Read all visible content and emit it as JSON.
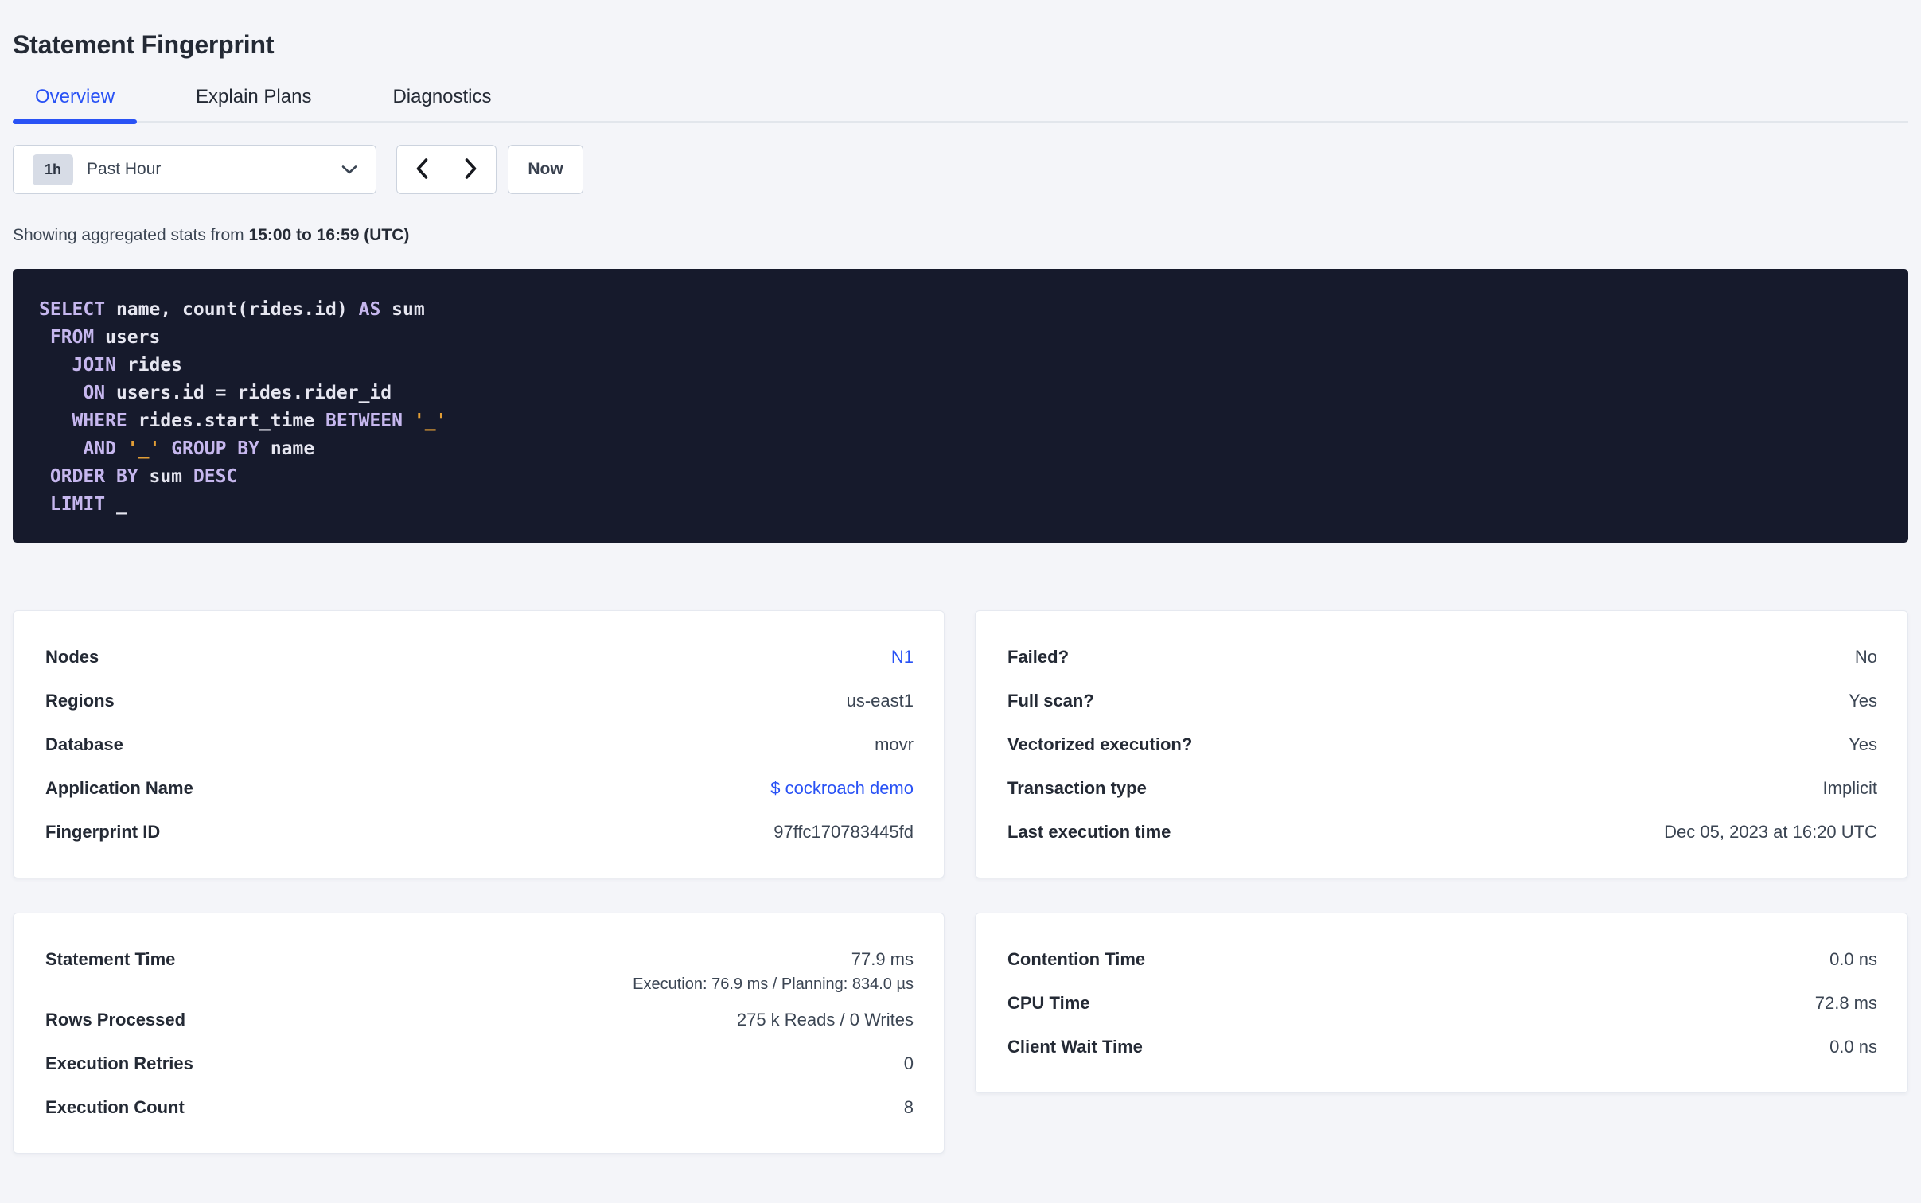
{
  "header": {
    "title": "Statement Fingerprint"
  },
  "tabs": [
    {
      "label": "Overview",
      "active": true
    },
    {
      "label": "Explain Plans",
      "active": false
    },
    {
      "label": "Diagnostics",
      "active": false
    }
  ],
  "toolbar": {
    "range_badge": "1h",
    "range_value": "Past Hour",
    "now_label": "Now",
    "icons": {
      "range_dropdown": "chevron-down",
      "prev": "chevron-left",
      "next": "chevron-right"
    }
  },
  "caption": {
    "prefix": "Showing aggregated stats from",
    "range": "15:00 to 16:59 (UTC)"
  },
  "sql": {
    "lines": [
      [
        {
          "t": "SELECT",
          "c": "kw"
        },
        {
          "t": " name, count(rides.id) ",
          "c": "id"
        },
        {
          "t": "AS",
          "c": "kw"
        },
        {
          "t": " sum",
          "c": "id"
        }
      ],
      [
        {
          "t": " ",
          "c": "id"
        },
        {
          "t": "FROM",
          "c": "kw"
        },
        {
          "t": " users",
          "c": "id"
        }
      ],
      [
        {
          "t": "   ",
          "c": "id"
        },
        {
          "t": "JOIN",
          "c": "kw"
        },
        {
          "t": " rides",
          "c": "id"
        }
      ],
      [
        {
          "t": "    ",
          "c": "id"
        },
        {
          "t": "ON",
          "c": "kw"
        },
        {
          "t": " users.id = rides.rider_id",
          "c": "id"
        }
      ],
      [
        {
          "t": "   ",
          "c": "id"
        },
        {
          "t": "WHERE",
          "c": "kw"
        },
        {
          "t": " rides.start_time ",
          "c": "id"
        },
        {
          "t": "BETWEEN",
          "c": "kw"
        },
        {
          "t": " ",
          "c": "id"
        },
        {
          "t": "'_'",
          "c": "str"
        }
      ],
      [
        {
          "t": "    ",
          "c": "id"
        },
        {
          "t": "AND",
          "c": "kw"
        },
        {
          "t": " ",
          "c": "id"
        },
        {
          "t": "'_'",
          "c": "str"
        },
        {
          "t": " ",
          "c": "id"
        },
        {
          "t": "GROUP BY",
          "c": "kw"
        },
        {
          "t": " name",
          "c": "id"
        }
      ],
      [
        {
          "t": " ",
          "c": "id"
        },
        {
          "t": "ORDER BY",
          "c": "kw"
        },
        {
          "t": " sum ",
          "c": "id"
        },
        {
          "t": "DESC",
          "c": "kw"
        }
      ],
      [
        {
          "t": " ",
          "c": "id"
        },
        {
          "t": "LIMIT",
          "c": "kw"
        },
        {
          "t": " _",
          "c": "id"
        }
      ]
    ]
  },
  "cards": {
    "details": {
      "rows": [
        {
          "label": "Nodes",
          "value": "N1"
        },
        {
          "label": "Regions",
          "value": "us-east1"
        },
        {
          "label": "Database",
          "value": "movr"
        },
        {
          "label": "Application Name",
          "value": "$ cockroach demo"
        },
        {
          "label": "Fingerprint ID",
          "value": "97ffc170783445fd"
        }
      ]
    },
    "attributes": {
      "rows": [
        {
          "label": "Failed?",
          "value": "No"
        },
        {
          "label": "Full scan?",
          "value": "Yes"
        },
        {
          "label": "Vectorized execution?",
          "value": "Yes"
        },
        {
          "label": "Transaction type",
          "value": "Implicit"
        },
        {
          "label": "Last execution time",
          "value": "Dec 05, 2023 at 16:20 UTC"
        }
      ]
    },
    "stats": {
      "rows": [
        {
          "label": "Statement Time",
          "value": "77.9 ms",
          "sub": "Execution: 76.9 ms / Planning: 834.0 µs"
        },
        {
          "label": "Rows Processed",
          "value": "275 k Reads / 0 Writes"
        },
        {
          "label": "Execution Retries",
          "value": "0"
        },
        {
          "label": "Execution Count",
          "value": "8"
        }
      ]
    },
    "times": {
      "rows": [
        {
          "label": "Contention Time",
          "value": "0.0 ns"
        },
        {
          "label": "CPU Time",
          "value": "72.8 ms"
        },
        {
          "label": "Client Wait Time",
          "value": "0.0 ns"
        }
      ]
    }
  },
  "colors": {
    "accent": "#2952f5",
    "page_bg": "#f4f5f9",
    "sql_bg": "#161a2c",
    "sql_keyword": "#c6b7ee",
    "sql_identifier": "#e6e6f0",
    "sql_string": "#e29e36"
  }
}
